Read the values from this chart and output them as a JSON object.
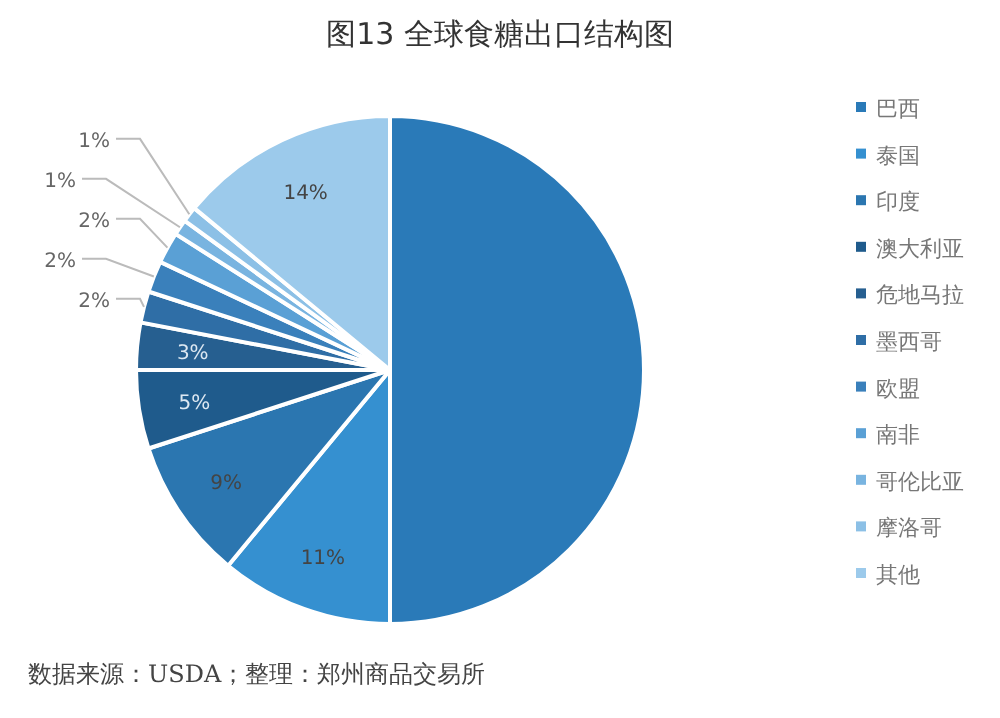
{
  "chart_data": {
    "type": "pie",
    "title": "图13  全球食糖出口结构图",
    "categories": [
      "巴西",
      "泰国",
      "印度",
      "澳大利亚",
      "危地马拉",
      "墨西哥",
      "欧盟",
      "南非",
      "哥伦比亚",
      "摩洛哥",
      "其他"
    ],
    "values": [
      50,
      11,
      9,
      5,
      3,
      2,
      2,
      2,
      1,
      1,
      14
    ],
    "colors": [
      "#2a7ab8",
      "#3590d0",
      "#2b76b0",
      "#1f5b8c",
      "#265f90",
      "#2f6ea6",
      "#3a80bb",
      "#5aa0d5",
      "#79b4e0",
      "#8cc0e6",
      "#9ccaeb"
    ],
    "value_labels": [
      null,
      "11%",
      "9%",
      "5%",
      "3%",
      "2%",
      "2%",
      "2%",
      "1%",
      "1%",
      "14%"
    ],
    "legend": "right",
    "annotations": [
      "数据来源：USDA；整理：郑州商品交易所"
    ]
  }
}
